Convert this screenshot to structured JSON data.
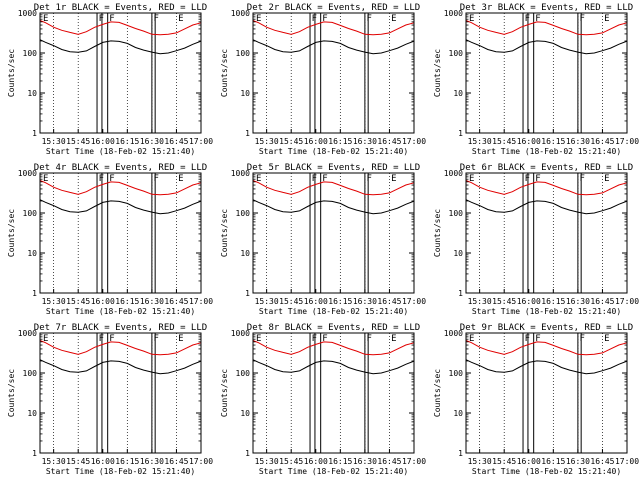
{
  "ylabel": "Counts/sec",
  "xlabel": "Start Time (18-Feb-02 15:21:40)",
  "yticks": [
    "1",
    "10",
    "100",
    "1000"
  ],
  "xticks": [
    "15:30",
    "15:45",
    "16:00",
    "16:15",
    "16:30",
    "16:45",
    "17:00"
  ],
  "colors": {
    "events": "#000000",
    "lld": "#e00000",
    "background": "#ffffff"
  },
  "chart_data": [
    {
      "type": "line",
      "title": "Det 1r BLACK = Events, RED = LLD",
      "markers": [
        "E",
        "F",
        "F",
        "F",
        "E"
      ]
    },
    {
      "type": "line",
      "title": "Det 2r BLACK = Events, RED = LLD",
      "markers": [
        "E",
        "F",
        "F",
        "F",
        "E"
      ]
    },
    {
      "type": "line",
      "title": "Det 3r BLACK = Events, RED = LLD",
      "markers": [
        "E",
        "F",
        "F",
        "F",
        "E"
      ]
    },
    {
      "type": "line",
      "title": "Det 4r BLACK = Events, RED = LLD",
      "markers": [
        "E",
        "F",
        "F",
        "F",
        "E"
      ]
    },
    {
      "type": "line",
      "title": "Det 5r BLACK = Events, RED = LLD",
      "markers": [
        "E",
        "F",
        "F",
        "F",
        "E"
      ]
    },
    {
      "type": "line",
      "title": "Det 6r BLACK = Events, RED = LLD",
      "markers": [
        "E",
        "F",
        "F",
        "F",
        "E"
      ]
    },
    {
      "type": "line",
      "title": "Det 7r BLACK = Events, RED = LLD",
      "markers": [
        "E",
        "F",
        "F",
        "F",
        "E"
      ]
    },
    {
      "type": "line",
      "title": "Det 8r BLACK = Events, RED = LLD",
      "markers": [
        "E",
        "F",
        "F",
        "F",
        "E"
      ]
    },
    {
      "type": "line",
      "title": "Det 9r BLACK = Events, RED = LLD",
      "markers": [
        "E",
        "F",
        "F",
        "F",
        "E"
      ]
    }
  ],
  "shared": {
    "x_range": [
      "15:21:40",
      "17:00:00"
    ],
    "y_scale": "log",
    "ylim": [
      1,
      1000
    ],
    "dotted_gridlines_at": [
      "15:30",
      "15:45",
      "16:15",
      "16:30",
      "16:45"
    ],
    "marker_lines_at": [
      "15:21:40",
      "15:56:30",
      "15:59:30",
      "16:03:00",
      "16:30:00",
      "16:32:00"
    ],
    "series": [
      {
        "name": "Events",
        "color": "black",
        "times": [
          "15:21:40",
          "15:25",
          "15:30",
          "15:35",
          "15:40",
          "15:45",
          "15:50",
          "15:55",
          "16:00",
          "16:05",
          "16:10",
          "16:15",
          "16:20",
          "16:25",
          "16:30",
          "16:35",
          "16:40",
          "16:45",
          "16:50",
          "16:55",
          "17:00"
        ],
        "values": [
          220,
          185,
          150,
          125,
          108,
          102,
          115,
          145,
          180,
          205,
          195,
          170,
          140,
          118,
          103,
          98,
          100,
          112,
          135,
          165,
          195
        ]
      },
      {
        "name": "LLD",
        "color": "red",
        "times": [
          "15:21:40",
          "15:25",
          "15:30",
          "15:35",
          "15:40",
          "15:45",
          "15:50",
          "15:55",
          "16:00",
          "16:05",
          "16:10",
          "16:15",
          "16:20",
          "16:25",
          "16:30",
          "16:35",
          "16:40",
          "16:45",
          "16:50",
          "16:55",
          "17:00"
        ],
        "values": [
          650,
          560,
          450,
          370,
          320,
          300,
          340,
          430,
          530,
          600,
          570,
          500,
          410,
          345,
          300,
          285,
          290,
          325,
          400,
          490,
          580
        ]
      }
    ]
  }
}
